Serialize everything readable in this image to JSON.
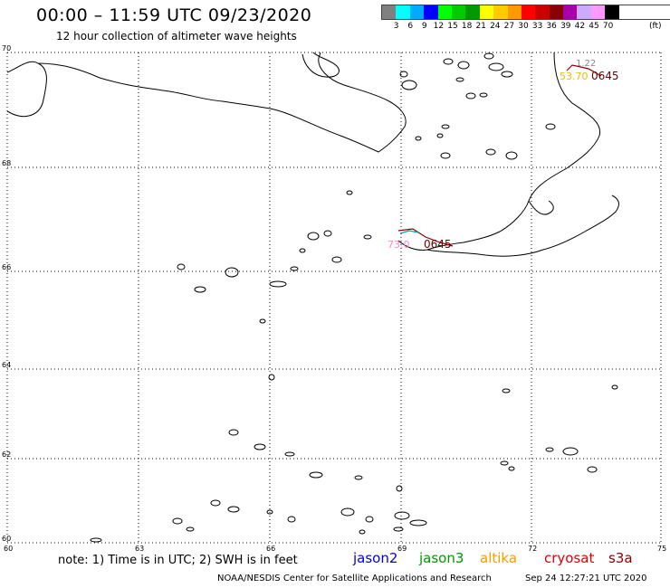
{
  "header": {
    "title": "00:00 – 11:59 UTC 09/23/2020",
    "subtitle": "12 hour collection of altimeter wave heights"
  },
  "scale": {
    "ticks": [
      "3",
      "6",
      "9",
      "12",
      "15",
      "18",
      "21",
      "24",
      "27",
      "30",
      "33",
      "36",
      "39",
      "42",
      "45",
      "70"
    ],
    "unit": "(ft)",
    "colors": [
      "#808080",
      "#00ffff",
      "#00aaff",
      "#0000ff",
      "#00ff00",
      "#00cc00",
      "#009900",
      "#ffff00",
      "#ffcc00",
      "#ff9900",
      "#ff0000",
      "#cc0000",
      "#880000",
      "#aa00aa",
      "#ccaaff",
      "#ff99ff",
      "#000000"
    ]
  },
  "axes": {
    "lon_labels": [
      "60",
      "63",
      "66",
      "69",
      "72",
      "75"
    ],
    "lat_labels": [
      "70",
      "68",
      "66",
      "64",
      "62",
      "60"
    ],
    "lon_range": [
      60,
      75
    ],
    "lat_range": [
      60,
      70
    ]
  },
  "annotations": {
    "upper_gray": "1.22",
    "upper_yellow": "53.70",
    "upper_dark": "0645",
    "mid_pink": "73.0",
    "mid_dark": "0645"
  },
  "footer": {
    "note": "note: 1) Time is in UTC; 2) SWH is in feet",
    "satellites": [
      {
        "name": "jason2",
        "color": "#0000dd"
      },
      {
        "name": "jason3",
        "color": "#009900"
      },
      {
        "name": "altika",
        "color": "#ff9900"
      },
      {
        "name": "cryosat",
        "color": "#dd0000"
      },
      {
        "name": "s3a",
        "color": "#880000"
      }
    ],
    "credit": "NOAA/NESDIS Center for Satellite Applications and Research",
    "timestamp": "Sep 24 12:27:21 UTC 2020"
  }
}
